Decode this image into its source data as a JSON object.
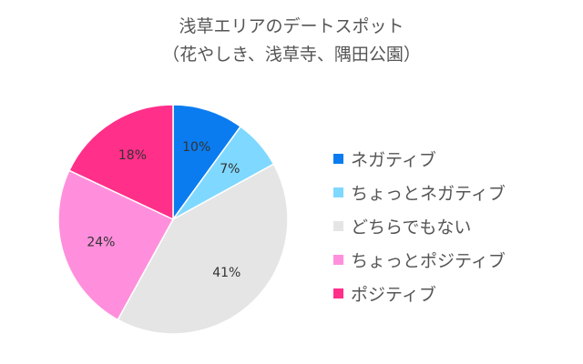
{
  "chart_data": {
    "type": "pie",
    "title": "浅草エリアのデートスポット",
    "subtitle": "（花やしき、浅草寺、隅田公園）",
    "categories": [
      "ネガティブ",
      "ちょっとネガティブ",
      "どちらでもない",
      "ちょっとポジティブ",
      "ポジティブ"
    ],
    "values": [
      10,
      7,
      41,
      24,
      18
    ],
    "labels": [
      "10%",
      "7%",
      "41%",
      "24%",
      "18%"
    ],
    "colors": [
      "#0a7cf0",
      "#7fd8ff",
      "#e5e5e5",
      "#ff8fdc",
      "#ff2f8a"
    ],
    "legend_position": "right"
  }
}
